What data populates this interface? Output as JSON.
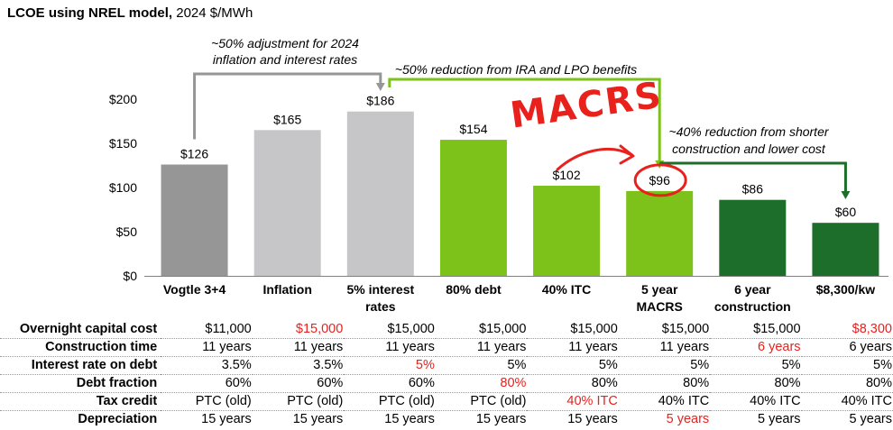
{
  "title": {
    "bold": "LCOE using NREL model,",
    "rest": " 2024 $/MWh"
  },
  "chart_data": {
    "type": "bar",
    "categories": [
      [
        "Vogtle 3+4"
      ],
      [
        "Inflation"
      ],
      [
        "5% interest",
        "rates"
      ],
      [
        "80% debt"
      ],
      [
        "40% ITC"
      ],
      [
        "5 year",
        "MACRS"
      ],
      [
        "6 year",
        "construction"
      ],
      [
        "$8,300/kw"
      ]
    ],
    "values": [
      126,
      165,
      186,
      154,
      102,
      96,
      86,
      60
    ],
    "value_labels": [
      "$126",
      "$165",
      "$186",
      "$154",
      "$102",
      "$96",
      "$86",
      "$60"
    ],
    "bar_colors": [
      "#969696",
      "#c6c6c8",
      "#c6c6c8",
      "#7cc21b",
      "#7cc21b",
      "#7cc21b",
      "#1c6e2a",
      "#1c6e2a"
    ],
    "ylim": [
      0,
      200
    ],
    "yticks": [
      0,
      50,
      100,
      150,
      200
    ],
    "ytick_labels": [
      "$0",
      "$50",
      "$100",
      "$150",
      "$200"
    ],
    "annotations": [
      {
        "lines": [
          "~50% adjustment for 2024",
          "inflation and interest rates"
        ],
        "color": "#969696",
        "from_bar": 0,
        "to_bar": 2
      },
      {
        "lines": [
          "~50% reduction from IRA and LPO benefits"
        ],
        "color": "#7cc21b",
        "from_bar": 2,
        "to_bar": 5
      },
      {
        "lines": [
          "~40% reduction from shorter",
          "construction and lower cost"
        ],
        "color": "#1c6e2a",
        "from_bar": 5,
        "to_bar": 7
      }
    ],
    "handwritten_note": {
      "text": "MACRS",
      "color": "#e8211d",
      "circled_bar": 5
    }
  },
  "table": {
    "rows": [
      {
        "label": "Overnight capital cost",
        "values": [
          "$11,000",
          "$15,000",
          "$15,000",
          "$15,000",
          "$15,000",
          "$15,000",
          "$15,000",
          "$8,300"
        ],
        "red": [
          1,
          7
        ]
      },
      {
        "label": "Construction time",
        "values": [
          "11 years",
          "11 years",
          "11 years",
          "11 years",
          "11 years",
          "11 years",
          "6 years",
          "6 years"
        ],
        "red": [
          6
        ]
      },
      {
        "label": "Interest rate on debt",
        "values": [
          "3.5%",
          "3.5%",
          "5%",
          "5%",
          "5%",
          "5%",
          "5%",
          "5%"
        ],
        "red": [
          2
        ]
      },
      {
        "label": "Debt fraction",
        "values": [
          "60%",
          "60%",
          "60%",
          "80%",
          "80%",
          "80%",
          "80%",
          "80%"
        ],
        "red": [
          3
        ]
      },
      {
        "label": "Tax credit",
        "values": [
          "PTC (old)",
          "PTC (old)",
          "PTC (old)",
          "PTC (old)",
          "40% ITC",
          "40% ITC",
          "40% ITC",
          "40% ITC"
        ],
        "red": [
          4
        ]
      },
      {
        "label": "Depreciation",
        "values": [
          "15 years",
          "15 years",
          "15 years",
          "15 years",
          "15 years",
          "5 years",
          "5 years",
          "5 years"
        ],
        "red": [
          5
        ]
      }
    ]
  }
}
